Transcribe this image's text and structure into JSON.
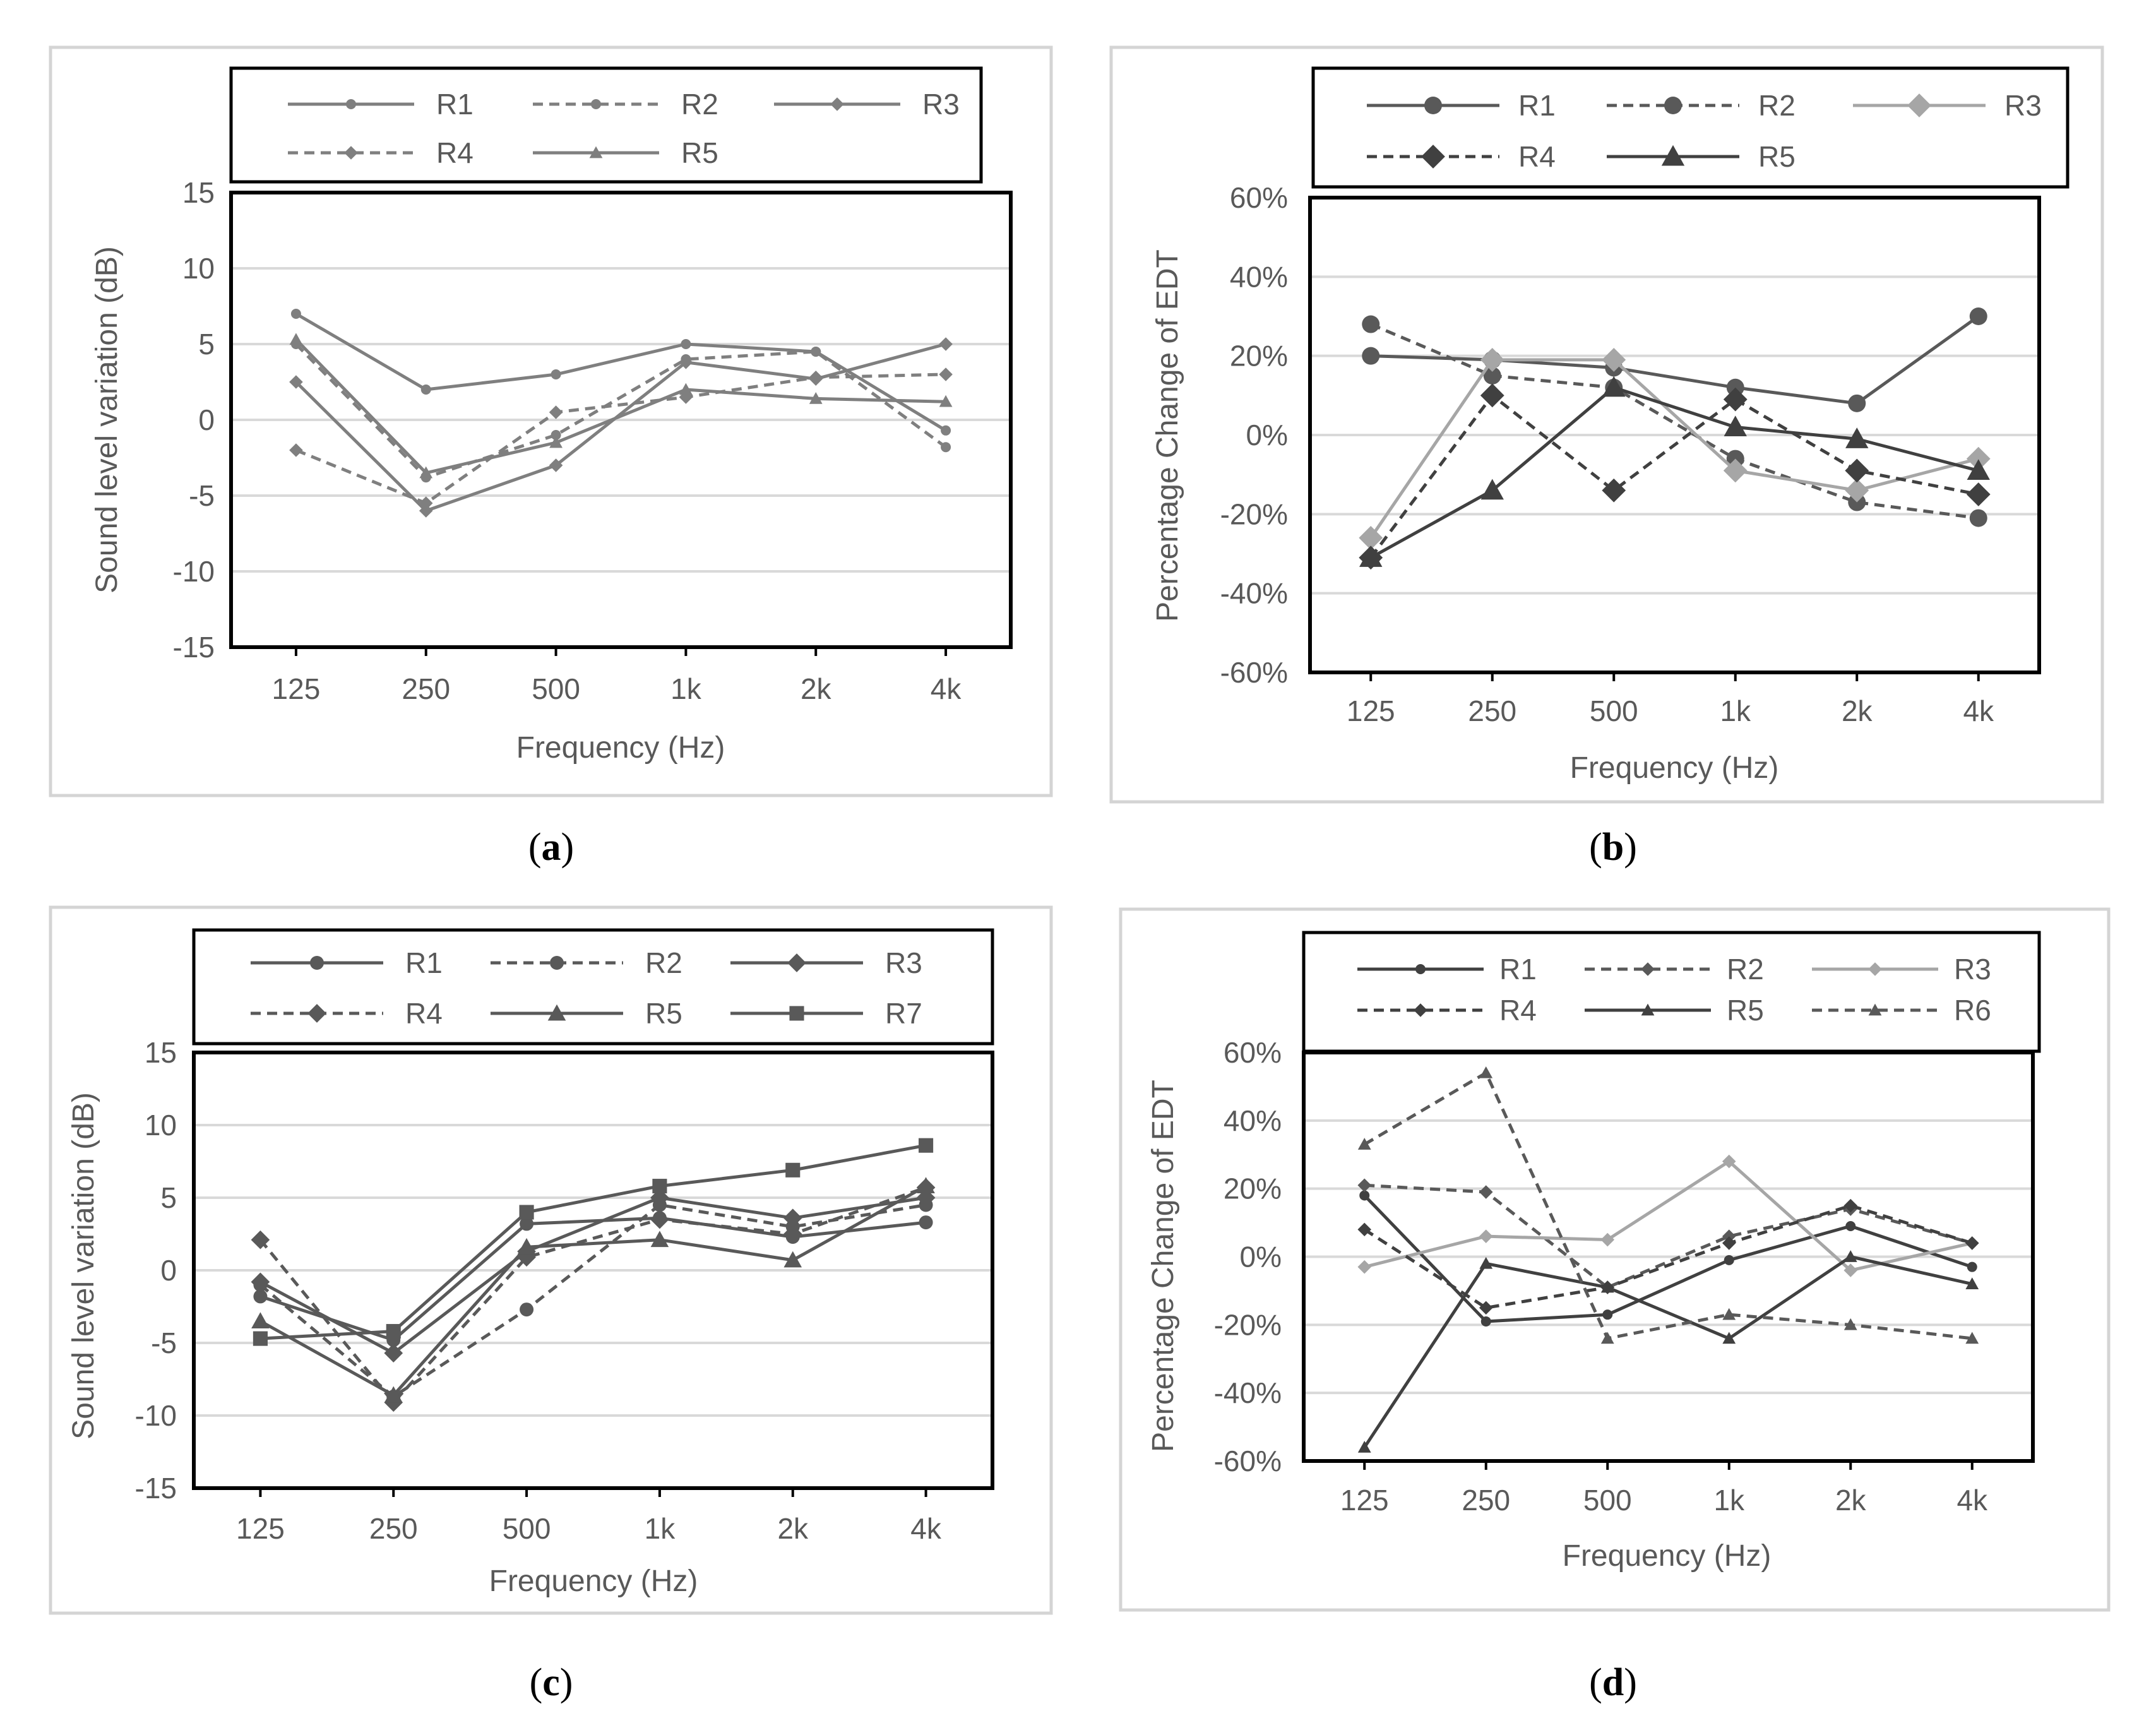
{
  "chart_data": [
    {
      "id": "a",
      "panel_label": "a",
      "type": "line",
      "categories": [
        "125",
        "250",
        "500",
        "1k",
        "2k",
        "4k"
      ],
      "ylabel": "Sound level variation (dB)",
      "xlabel": "Frequency (Hz)",
      "ylim": [
        -15,
        15
      ],
      "yticks": [
        -15,
        -10,
        -5,
        0,
        5,
        10,
        15
      ],
      "ytick_labels": [
        "-15",
        "-10",
        "-5",
        "0",
        "5",
        "10",
        "15"
      ],
      "grid": true,
      "legend": "top",
      "series": [
        {
          "name": "R1",
          "marker": "circle",
          "dash": false,
          "color": "#7f7f7f",
          "values": [
            7.0,
            2.0,
            3.0,
            5.0,
            4.5,
            -0.7
          ]
        },
        {
          "name": "R2",
          "marker": "circle",
          "dash": true,
          "color": "#7f7f7f",
          "values": [
            5.0,
            -3.8,
            -1.0,
            4.0,
            4.5,
            -1.8
          ]
        },
        {
          "name": "R3",
          "marker": "diamond",
          "dash": false,
          "color": "#7f7f7f",
          "values": [
            2.5,
            -6.0,
            -3.0,
            3.8,
            2.7,
            5.0
          ]
        },
        {
          "name": "R4",
          "marker": "diamond",
          "dash": true,
          "color": "#7f7f7f",
          "values": [
            -2.0,
            -5.5,
            0.5,
            1.5,
            2.8,
            3.0
          ]
        },
        {
          "name": "R5",
          "marker": "triangle",
          "dash": false,
          "color": "#7f7f7f",
          "values": [
            5.3,
            -3.5,
            -1.5,
            2.0,
            1.4,
            1.2
          ]
        }
      ]
    },
    {
      "id": "b",
      "panel_label": "b",
      "type": "line",
      "categories": [
        "125",
        "250",
        "500",
        "1k",
        "2k",
        "4k"
      ],
      "ylabel": "Percentage Change of EDT",
      "xlabel": "Frequency (Hz)",
      "ylim": [
        -60,
        60
      ],
      "yticks": [
        -60,
        -40,
        -20,
        0,
        20,
        40,
        60
      ],
      "ytick_labels": [
        "-60%",
        "-40%",
        "-20%",
        "0%",
        "20%",
        "40%",
        "60%"
      ],
      "grid": true,
      "legend": "top",
      "series": [
        {
          "name": "R1",
          "marker": "circle",
          "dash": false,
          "color": "#595959",
          "values": [
            20,
            19,
            17,
            12,
            8,
            30
          ]
        },
        {
          "name": "R2",
          "marker": "circle",
          "dash": true,
          "color": "#595959",
          "values": [
            28,
            15,
            12,
            -6,
            -17,
            -21
          ]
        },
        {
          "name": "R3",
          "marker": "diamond",
          "dash": false,
          "color": "#a6a6a6",
          "values": [
            -26,
            19,
            19,
            -9,
            -14,
            -6
          ]
        },
        {
          "name": "R4",
          "marker": "diamond",
          "dash": true,
          "color": "#404040",
          "values": [
            -31,
            10,
            -14,
            9,
            -9,
            -15
          ]
        },
        {
          "name": "R5",
          "marker": "triangle",
          "dash": false,
          "color": "#404040",
          "values": [
            -31,
            -14,
            12,
            2,
            -1,
            -9
          ]
        }
      ]
    },
    {
      "id": "c",
      "panel_label": "c",
      "type": "line",
      "categories": [
        "125",
        "250",
        "500",
        "1k",
        "2k",
        "4k"
      ],
      "ylabel": "Sound level variation (dB)",
      "xlabel": "Frequency (Hz)",
      "ylim": [
        -15,
        15
      ],
      "yticks": [
        -15,
        -10,
        -5,
        0,
        5,
        10,
        15
      ],
      "ytick_labels": [
        "-15",
        "-10",
        "-5",
        "0",
        "5",
        "10",
        "15"
      ],
      "grid": true,
      "legend": "top",
      "series": [
        {
          "name": "R1",
          "marker": "circle",
          "dash": false,
          "color": "#595959",
          "values": [
            -1.8,
            -4.8,
            3.2,
            3.6,
            2.3,
            3.3
          ]
        },
        {
          "name": "R2",
          "marker": "circle",
          "dash": true,
          "color": "#595959",
          "values": [
            -1.0,
            -8.7,
            -2.7,
            4.5,
            3.0,
            4.5
          ]
        },
        {
          "name": "R3",
          "marker": "diamond",
          "dash": false,
          "color": "#595959",
          "values": [
            -0.8,
            -5.7,
            1.3,
            5.0,
            3.6,
            5.0
          ]
        },
        {
          "name": "R4",
          "marker": "diamond",
          "dash": true,
          "color": "#595959",
          "values": [
            2.1,
            -9.1,
            0.9,
            3.5,
            2.5,
            5.7
          ]
        },
        {
          "name": "R5",
          "marker": "triangle",
          "dash": false,
          "color": "#595959",
          "values": [
            -3.5,
            -8.6,
            1.6,
            2.1,
            0.7,
            5.8
          ]
        },
        {
          "name": "R7",
          "marker": "square",
          "dash": false,
          "color": "#595959",
          "values": [
            -4.7,
            -4.2,
            4.0,
            5.8,
            6.9,
            8.6
          ]
        }
      ]
    },
    {
      "id": "d",
      "panel_label": "d",
      "type": "line",
      "categories": [
        "125",
        "250",
        "500",
        "1k",
        "2k",
        "4k"
      ],
      "ylabel": "Percentage Change of EDT",
      "xlabel": "Frequency (Hz)",
      "ylim": [
        -60,
        60
      ],
      "yticks": [
        -60,
        -40,
        -20,
        0,
        20,
        40,
        60
      ],
      "ytick_labels": [
        "-60%",
        "-40%",
        "-20%",
        "0%",
        "20%",
        "40%",
        "60%"
      ],
      "grid": true,
      "legend": "top",
      "series": [
        {
          "name": "R1",
          "marker": "circle",
          "dash": false,
          "color": "#404040",
          "values": [
            18,
            -19,
            -17,
            -1,
            9,
            -3
          ]
        },
        {
          "name": "R2",
          "marker": "diamond",
          "dash": true,
          "color": "#595959",
          "values": [
            21,
            19,
            -9,
            6,
            14,
            4
          ]
        },
        {
          "name": "R3",
          "marker": "diamond",
          "dash": false,
          "color": "#a6a6a6",
          "values": [
            -3,
            6,
            5,
            28,
            -4,
            4
          ]
        },
        {
          "name": "R4",
          "marker": "diamond",
          "dash": true,
          "color": "#404040",
          "values": [
            8,
            -15,
            -9,
            4,
            15,
            4
          ]
        },
        {
          "name": "R5",
          "marker": "triangle",
          "dash": false,
          "color": "#404040",
          "values": [
            -56,
            -2,
            -9,
            -24,
            0,
            -8
          ]
        },
        {
          "name": "R6",
          "marker": "triangle",
          "dash": true,
          "color": "#595959",
          "values": [
            33,
            54,
            -24,
            -17,
            -20,
            -24
          ]
        }
      ]
    }
  ]
}
